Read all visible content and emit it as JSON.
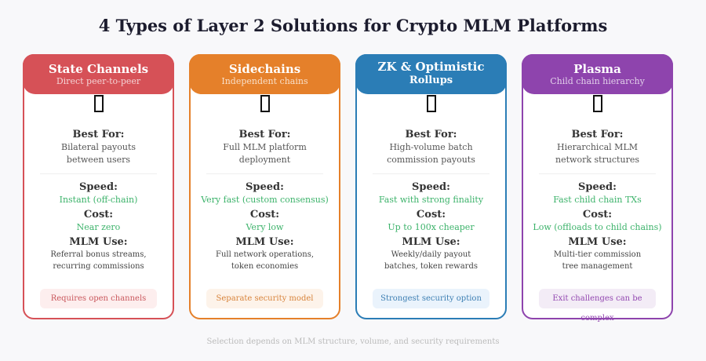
{
  "title": "4 Types of Layer 2 Solutions for Crypto MLM Platforms",
  "footer": "Selection depends on MLM structure, volume, and security requirements",
  "labels": {
    "best_for": "Best For:",
    "speed": "Speed:",
    "cost": "Cost:",
    "mlm_use": "MLM Use:"
  },
  "cards": [
    {
      "title": "State Channels",
      "subtitle": "Direct peer-to-peer",
      "color": "#d65157",
      "best_for": [
        "Bilateral payouts",
        "between users"
      ],
      "speed": "Instant (off-chain)",
      "cost": "Near zero",
      "mlm_use": [
        "Referral bonus streams,",
        "recurring commissions"
      ],
      "note": "Requires open channels",
      "note_bg": "#fdeeee",
      "note_color": "#c9575c"
    },
    {
      "title": "Sidechains",
      "subtitle": "Independent chains",
      "color": "#e5802a",
      "best_for": [
        "Full MLM platform",
        "deployment"
      ],
      "speed": "Very fast (custom consensus)",
      "cost": "Very low",
      "mlm_use": [
        "Full network operations,",
        "token economies"
      ],
      "note": "Separate security model",
      "note_bg": "#fdf3ea",
      "note_color": "#d8843c"
    },
    {
      "title": "ZK & Optimistic",
      "title2": "Rollups",
      "subtitle": "",
      "color": "#2b7db6",
      "best_for": [
        "High-volume batch",
        "commission payouts"
      ],
      "speed": "Fast with strong finality",
      "cost": "Up to 100x cheaper",
      "mlm_use": [
        "Weekly/daily payout",
        "batches, token rewards"
      ],
      "note": "Strongest security option",
      "note_bg": "#eaf3fc",
      "note_color": "#3d7fb3"
    },
    {
      "title": "Plasma",
      "subtitle": "Child chain hierarchy",
      "color": "#8e44ad",
      "best_for": [
        "Hierarchical MLM",
        "network structures"
      ],
      "speed": "Fast child chain TXs",
      "cost": "Low (offloads to child chains)",
      "mlm_use": [
        "Multi-tier commission",
        "tree management"
      ],
      "note": "Exit challenges can be complex",
      "note_bg": "#f3ecf6",
      "note_color": "#9247b0"
    }
  ]
}
